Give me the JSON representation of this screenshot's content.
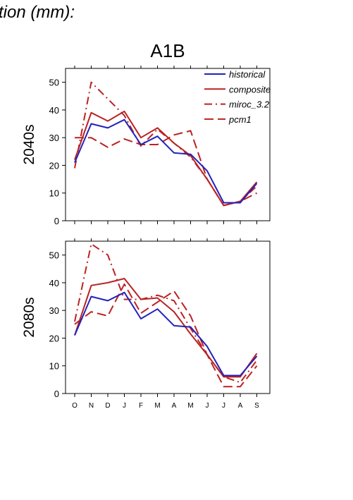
{
  "figure": {
    "heading": "tion (mm):",
    "scenario": "A1B"
  },
  "legend": [
    "historical",
    "composite",
    "miroc_3.2",
    "pcm1"
  ],
  "colors": {
    "historical": "#2222bb",
    "composite": "#bb2222",
    "miroc_3.2": "#bb2222",
    "pcm1": "#bb2222"
  },
  "chart_data": [
    {
      "type": "line",
      "panel_label": "2040s",
      "categories": [
        "O",
        "N",
        "D",
        "J",
        "F",
        "M",
        "A",
        "M",
        "J",
        "J",
        "A",
        "S"
      ],
      "ylim": [
        0,
        55
      ],
      "yticks": [
        0,
        10,
        20,
        30,
        40,
        50
      ],
      "series": [
        {
          "name": "historical",
          "style": "solid",
          "values": [
            21,
            35,
            33.5,
            36.5,
            27.5,
            30.5,
            24.5,
            24,
            18,
            6.5,
            6.5,
            13.5
          ]
        },
        {
          "name": "composite",
          "style": "solid",
          "values": [
            22,
            39,
            36,
            39.5,
            30,
            33.5,
            28,
            23.5,
            15,
            5.5,
            7,
            14
          ]
        },
        {
          "name": "miroc_3.2",
          "style": "dashdot",
          "values": [
            19,
            50,
            44,
            38,
            27,
            33,
            28,
            23,
            15,
            5.5,
            7,
            12.5
          ]
        },
        {
          "name": "pcm1",
          "style": "longdash",
          "values": [
            30,
            30,
            26.5,
            29.5,
            27.5,
            27.5,
            31,
            32.5,
            15,
            5.5,
            7,
            10
          ]
        }
      ]
    },
    {
      "type": "line",
      "panel_label": "2080s",
      "categories": [
        "O",
        "N",
        "D",
        "J",
        "F",
        "M",
        "A",
        "M",
        "J",
        "J",
        "A",
        "S"
      ],
      "ylim": [
        0,
        55
      ],
      "yticks": [
        0,
        10,
        20,
        30,
        40,
        50
      ],
      "series": [
        {
          "name": "historical",
          "style": "solid",
          "values": [
            21,
            35,
            33.5,
            36.5,
            27,
            30.5,
            24.5,
            24,
            17,
            6.5,
            6.5,
            13.5
          ]
        },
        {
          "name": "composite",
          "style": "solid",
          "values": [
            21,
            39,
            40,
            41.5,
            34,
            34.5,
            29.5,
            21.5,
            14,
            6,
            6,
            14.5
          ]
        },
        {
          "name": "miroc_3.2",
          "style": "dashdot",
          "values": [
            26,
            54,
            50,
            34,
            34,
            35.5,
            33.5,
            23.5,
            14,
            6,
            4,
            12
          ]
        },
        {
          "name": "pcm1",
          "style": "longdash",
          "values": [
            25,
            29.5,
            28,
            39.5,
            29,
            33,
            37,
            28,
            14,
            2.5,
            2.5,
            10
          ]
        }
      ]
    }
  ]
}
